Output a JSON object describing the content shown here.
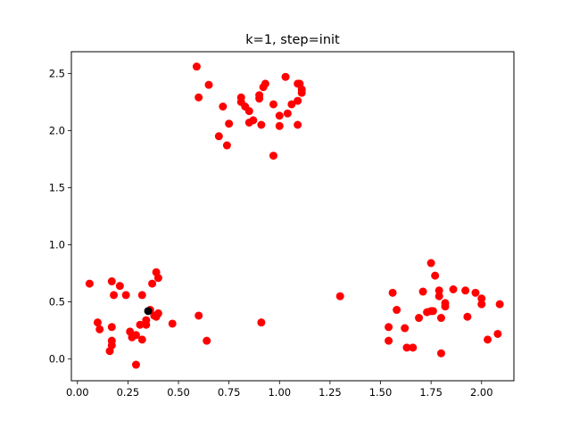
{
  "chart_data": {
    "type": "scatter",
    "title": "k=1, step=init",
    "xlabel": "",
    "ylabel": "",
    "xlim": [
      -0.03,
      2.16
    ],
    "ylim": [
      -0.19,
      2.69
    ],
    "xticks": [
      0.0,
      0.25,
      0.5,
      0.75,
      1.0,
      1.25,
      1.5,
      1.75,
      2.0
    ],
    "xtick_labels": [
      "0.00",
      "0.25",
      "0.50",
      "0.75",
      "1.00",
      "1.25",
      "1.50",
      "1.75",
      "2.00"
    ],
    "yticks": [
      0.0,
      0.5,
      1.0,
      1.5,
      2.0,
      2.5
    ],
    "ytick_labels": [
      "0.0",
      "0.5",
      "1.0",
      "1.5",
      "2.0",
      "2.5"
    ],
    "grid": false,
    "legend": "none",
    "series": [
      {
        "color": "#ff0000",
        "points": [
          [
            0.59,
            2.56
          ],
          [
            0.65,
            2.4
          ],
          [
            0.6,
            2.29
          ],
          [
            0.72,
            2.21
          ],
          [
            0.75,
            2.06
          ],
          [
            0.7,
            1.95
          ],
          [
            0.74,
            1.87
          ],
          [
            0.81,
            2.29
          ],
          [
            0.81,
            2.25
          ],
          [
            0.83,
            2.21
          ],
          [
            0.85,
            2.17
          ],
          [
            0.87,
            2.09
          ],
          [
            0.85,
            2.07
          ],
          [
            0.9,
            2.31
          ],
          [
            0.9,
            2.28
          ],
          [
            0.93,
            2.41
          ],
          [
            0.92,
            2.38
          ],
          [
            0.91,
            2.05
          ],
          [
            0.97,
            2.23
          ],
          [
            0.97,
            1.78
          ],
          [
            1.0,
            2.13
          ],
          [
            1.0,
            2.04
          ],
          [
            1.03,
            2.47
          ],
          [
            1.04,
            2.15
          ],
          [
            1.06,
            2.23
          ],
          [
            1.09,
            2.41
          ],
          [
            1.1,
            2.41
          ],
          [
            1.09,
            2.26
          ],
          [
            1.11,
            2.33
          ],
          [
            1.11,
            2.36
          ],
          [
            1.09,
            2.05
          ],
          [
            0.06,
            0.66
          ],
          [
            0.1,
            0.32
          ],
          [
            0.11,
            0.26
          ],
          [
            0.17,
            0.68
          ],
          [
            0.18,
            0.56
          ],
          [
            0.21,
            0.64
          ],
          [
            0.24,
            0.56
          ],
          [
            0.17,
            0.28
          ],
          [
            0.17,
            0.16
          ],
          [
            0.16,
            0.07
          ],
          [
            0.17,
            0.12
          ],
          [
            0.26,
            0.24
          ],
          [
            0.27,
            0.19
          ],
          [
            0.29,
            0.21
          ],
          [
            0.29,
            -0.05
          ],
          [
            0.31,
            0.3
          ],
          [
            0.32,
            0.17
          ],
          [
            0.32,
            0.56
          ],
          [
            0.34,
            0.3
          ],
          [
            0.34,
            0.34
          ],
          [
            0.36,
            0.43
          ],
          [
            0.37,
            0.66
          ],
          [
            0.38,
            0.38
          ],
          [
            0.39,
            0.76
          ],
          [
            0.4,
            0.71
          ],
          [
            0.4,
            0.4
          ],
          [
            0.39,
            0.37
          ],
          [
            0.47,
            0.31
          ],
          [
            0.6,
            0.38
          ],
          [
            0.64,
            0.16
          ],
          [
            0.91,
            0.32
          ],
          [
            1.3,
            0.55
          ],
          [
            1.54,
            0.28
          ],
          [
            1.54,
            0.16
          ],
          [
            1.56,
            0.58
          ],
          [
            1.58,
            0.43
          ],
          [
            1.62,
            0.27
          ],
          [
            1.63,
            0.1
          ],
          [
            1.66,
            0.1
          ],
          [
            1.69,
            0.36
          ],
          [
            1.71,
            0.59
          ],
          [
            1.73,
            0.41
          ],
          [
            1.75,
            0.42
          ],
          [
            1.76,
            0.42
          ],
          [
            1.75,
            0.84
          ],
          [
            1.77,
            0.73
          ],
          [
            1.79,
            0.55
          ],
          [
            1.79,
            0.6
          ],
          [
            1.8,
            0.36
          ],
          [
            1.82,
            0.49
          ],
          [
            1.82,
            0.46
          ],
          [
            1.8,
            0.05
          ],
          [
            1.86,
            0.61
          ],
          [
            1.92,
            0.6
          ],
          [
            1.93,
            0.37
          ],
          [
            1.97,
            0.58
          ],
          [
            2.0,
            0.53
          ],
          [
            2.0,
            0.48
          ],
          [
            2.03,
            0.17
          ],
          [
            2.08,
            0.22
          ],
          [
            2.09,
            0.48
          ]
        ]
      },
      {
        "color": "#000000",
        "points": [
          [
            0.35,
            0.42
          ]
        ]
      }
    ]
  }
}
